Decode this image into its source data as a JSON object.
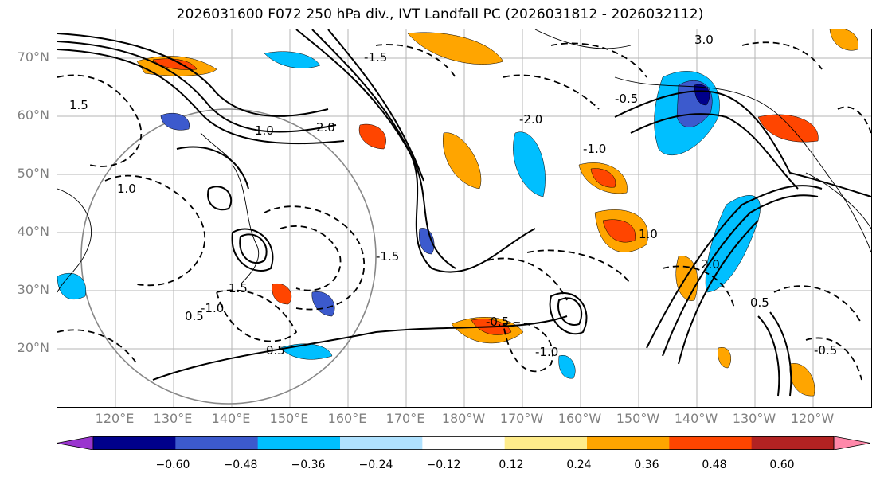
{
  "title": "2026031600 F072 250 hPa div., IVT Landfall PC (2026031812 - 2026032112)",
  "lat_labels": [
    "70°N",
    "60°N",
    "50°N",
    "40°N",
    "30°N",
    "20°N"
  ],
  "lon_labels": [
    "120°E",
    "130°E",
    "140°E",
    "150°E",
    "160°E",
    "170°E",
    "180°W",
    "170°W",
    "160°W",
    "150°W",
    "140°W",
    "130°W",
    "120°W"
  ],
  "contour_labels": [
    "3.0",
    "2.0",
    "1.0",
    "1.0",
    "1.0",
    "0.5",
    "0.5",
    "0.5",
    "1.5",
    "1.5",
    "2.0",
    "-0.5",
    "-0.5",
    "-0.5",
    "-1.0",
    "-1.0",
    "-1.0",
    "-1.5",
    "-1.5",
    "-2.0"
  ],
  "colorbar": {
    "ticks": [
      "−0.60",
      "−0.48",
      "−0.36",
      "−0.24",
      "−0.12",
      "0.12",
      "0.24",
      "0.36",
      "0.48",
      "0.60"
    ],
    "colors": [
      "#9a35cf",
      "#00008b",
      "#3c5acd",
      "#00bfff",
      "#b0e2ff",
      "#ffffff",
      "#ffec8b",
      "#ffa500",
      "#ff4500",
      "#b22222",
      "#ff88aa"
    ]
  },
  "shading_colors": {
    "purple": "#9a35cf",
    "navy": "#00008b",
    "royal": "#3c5acd",
    "sky": "#00bfff",
    "lightblue": "#b0e2ff",
    "yellow": "#ffec8b",
    "orange": "#ffa500",
    "redorange": "#ff4500",
    "firebrick": "#b22222",
    "pink": "#ff88aa"
  }
}
